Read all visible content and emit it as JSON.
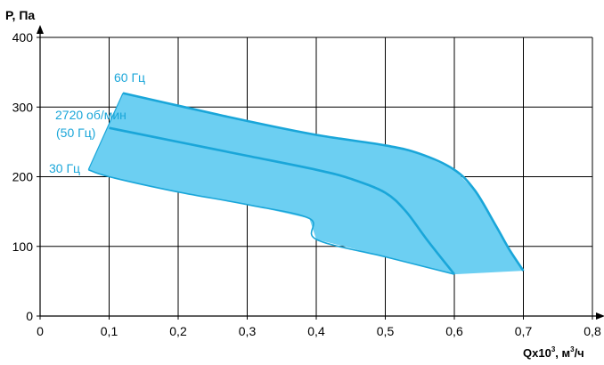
{
  "chart_data": {
    "type": "area",
    "ylabel": "P, Па",
    "xlabel_main": "Qx10",
    "xlabel_sup": "3",
    "xlabel_unit": ", м",
    "xlabel_unit_sup": "3",
    "xlabel_tail": "/ч",
    "xlim": [
      0,
      0.8
    ],
    "ylim": [
      0,
      400
    ],
    "x_ticks": [
      0,
      0.1,
      0.2,
      0.3,
      0.4,
      0.5,
      0.6,
      0.7,
      0.8
    ],
    "x_tick_labels": [
      "0",
      "0,1",
      "0,2",
      "0,3",
      "0,4",
      "0,5",
      "0,6",
      "0,7",
      "0,8"
    ],
    "y_ticks": [
      0,
      100,
      200,
      300,
      400
    ],
    "y_tick_labels": [
      "0",
      "100",
      "200",
      "300",
      "400"
    ],
    "grid": true,
    "colors": {
      "fill": "#6ccff2",
      "line": "#1aa6d9",
      "label": "#1aa6d9",
      "axis": "#000000"
    },
    "series": [
      {
        "name": "60 Гц",
        "points": [
          [
            0.12,
            320
          ],
          [
            0.2,
            302
          ],
          [
            0.3,
            280
          ],
          [
            0.4,
            260
          ],
          [
            0.5,
            245
          ],
          [
            0.55,
            233
          ],
          [
            0.6,
            210
          ],
          [
            0.63,
            180
          ],
          [
            0.66,
            130
          ],
          [
            0.68,
            95
          ],
          [
            0.7,
            65
          ]
        ]
      },
      {
        "name": "2720 об/мин",
        "name_line2": "(50 Гц)",
        "points": [
          [
            0.1,
            270
          ],
          [
            0.2,
            250
          ],
          [
            0.3,
            230
          ],
          [
            0.4,
            210
          ],
          [
            0.45,
            197
          ],
          [
            0.5,
            177
          ],
          [
            0.53,
            150
          ],
          [
            0.56,
            110
          ],
          [
            0.6,
            60
          ]
        ]
      },
      {
        "name": "30 Гц",
        "points": [
          [
            0.07,
            210
          ],
          [
            0.1,
            200
          ],
          [
            0.2,
            178
          ],
          [
            0.3,
            160
          ],
          [
            0.39,
            140
          ],
          [
            0.4,
            110
          ],
          [
            0.5,
            85
          ],
          [
            0.6,
            60
          ]
        ]
      }
    ],
    "region_lower_edge": [
      [
        0.07,
        210
      ],
      [
        0.1,
        200
      ],
      [
        0.2,
        178
      ],
      [
        0.3,
        160
      ],
      [
        0.39,
        140
      ],
      [
        0.4,
        110
      ],
      [
        0.5,
        85
      ],
      [
        0.6,
        60
      ],
      [
        0.7,
        65
      ]
    ],
    "region_left_edge": [
      [
        0.07,
        210
      ],
      [
        0.12,
        320
      ]
    ]
  }
}
